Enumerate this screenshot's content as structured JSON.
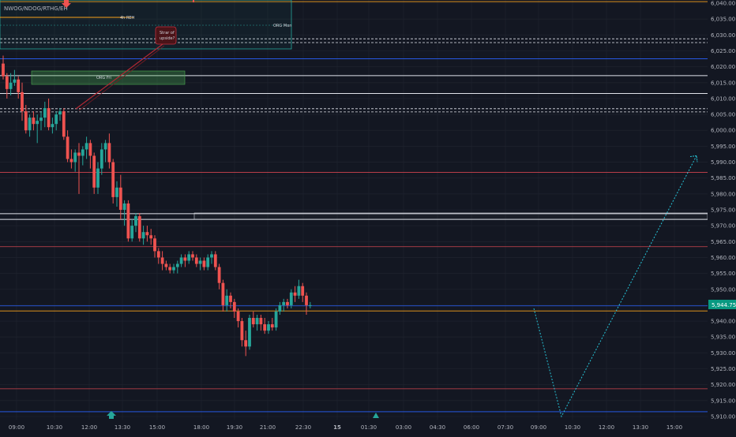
{
  "indicator": {
    "name": "NWOG/NDOG/RTHG/EH"
  },
  "annotations": {
    "reh_label": "4h REH",
    "org_mon_label": "ORG Mon",
    "org_fri_label": "ORG Fri",
    "callout_line1": "Strar of",
    "callout_line2": "upside?"
  },
  "price_badge": "5,944.75",
  "colors": {
    "background": "#131722",
    "bull": "#26a69a",
    "bear": "#ef5350",
    "price_badge": "#089981",
    "orange_line": "#f7a21b",
    "red_line": "#d0454f",
    "blue_line": "#2962ff",
    "teal_path": "#26c6da"
  },
  "chart_data": {
    "type": "candlestick",
    "y_ticks": [
      "6,040.00",
      "6,035.00",
      "6,030.00",
      "6,025.00",
      "6,020.00",
      "6,015.00",
      "6,010.00",
      "6,005.00",
      "6,000.00",
      "5,995.00",
      "5,990.00",
      "5,985.00",
      "5,980.00",
      "5,975.00",
      "5,970.00",
      "5,965.00",
      "5,960.00",
      "5,955.00",
      "5,950.00",
      "5,945.00",
      "5,940.00",
      "5,935.00",
      "5,930.00",
      "5,925.00",
      "5,920.00",
      "5,915.00",
      "5,910.00"
    ],
    "x_ticks": [
      "09:00",
      "10:30",
      "12:00",
      "13:30",
      "15:00",
      "18:00",
      "19:30",
      "21:00",
      "22:30",
      "15",
      "01:30",
      "03:00",
      "04:30",
      "06:00",
      "07:30",
      "09:00",
      "10:30",
      "12:00",
      "13:30",
      "15:00"
    ],
    "ylim": [
      5909,
      6041
    ],
    "current_price": 5944.75,
    "levels": [
      {
        "price": 6040.5,
        "color": "orange"
      },
      {
        "price": 6028.8,
        "color": "white-dashed"
      },
      {
        "price": 6027.6,
        "color": "white-dashed"
      },
      {
        "price": 6022.5,
        "color": "blue"
      },
      {
        "price": 6017.2,
        "color": "white"
      },
      {
        "price": 6011.6,
        "color": "white"
      },
      {
        "price": 6006.8,
        "color": "white-dashed"
      },
      {
        "price": 6005.8,
        "color": "white-dashed"
      },
      {
        "price": 5986.8,
        "color": "red"
      },
      {
        "price": 5973.8,
        "color": "white"
      },
      {
        "price": 5972.0,
        "color": "white"
      },
      {
        "price": 5963.4,
        "color": "red"
      },
      {
        "price": 5944.8,
        "color": "blue"
      },
      {
        "price": 5943.2,
        "color": "orange"
      },
      {
        "price": 5918.7,
        "color": "red"
      },
      {
        "price": 5911.5,
        "color": "blue"
      }
    ],
    "projection": [
      {
        "x": "09:00",
        "price": 5944.0
      },
      {
        "x": "10:30",
        "price": 5910.0
      },
      {
        "x": "15:00",
        "price": 5992.0
      }
    ],
    "candles": [
      [
        6021.0,
        6023.5,
        6016.0,
        6017.0
      ],
      [
        6017.0,
        6018.0,
        6010.0,
        6013.0
      ],
      [
        6013.0,
        6018.0,
        6011.0,
        6015.0
      ],
      [
        6015.0,
        6019.0,
        6014.0,
        6016.0
      ],
      [
        6016.0,
        6017.0,
        6010.0,
        6012.0
      ],
      [
        6012.0,
        6015.0,
        6003.0,
        6006.0
      ],
      [
        6006.0,
        6008.0,
        5999.0,
        6000.0
      ],
      [
        6000.0,
        6005.0,
        5998.0,
        6004.0
      ],
      [
        6004.0,
        6006.0,
        6000.0,
        6002.0
      ],
      [
        6002.0,
        6005.0,
        5996.0,
        6003.0
      ],
      [
        6003.0,
        6006.0,
        6000.0,
        6004.0
      ],
      [
        6004.0,
        6009.0,
        6001.0,
        6007.0
      ],
      [
        6007.0,
        6010.0,
        6000.0,
        6001.0
      ],
      [
        6001.0,
        6004.0,
        5999.0,
        6002.0
      ],
      [
        6002.0,
        6006.0,
        6000.0,
        6005.0
      ],
      [
        6005.0,
        6007.0,
        6003.0,
        6006.0
      ],
      [
        6006.0,
        6007.0,
        5997.0,
        5998.0
      ],
      [
        5998.0,
        6000.0,
        5990.0,
        5991.0
      ],
      [
        5991.0,
        5994.0,
        5988.0,
        5990.0
      ],
      [
        5990.0,
        5994.0,
        5987.0,
        5993.0
      ],
      [
        5993.0,
        5996.0,
        5980.0,
        5992.0
      ],
      [
        5992.0,
        5995.0,
        5989.0,
        5994.0
      ],
      [
        5994.0,
        5998.0,
        5991.0,
        5996.0
      ],
      [
        5996.0,
        5997.0,
        5988.0,
        5992.0
      ],
      [
        5992.0,
        5993.0,
        5980.0,
        5982.0
      ],
      [
        5982.0,
        5990.0,
        5980.0,
        5988.0
      ],
      [
        5988.0,
        5996.0,
        5986.0,
        5994.0
      ],
      [
        5994.0,
        5997.0,
        5990.0,
        5996.0
      ],
      [
        5996.0,
        5999.0,
        5988.0,
        5990.0
      ],
      [
        5990.0,
        5991.0,
        5977.0,
        5979.0
      ],
      [
        5979.0,
        5984.0,
        5976.0,
        5982.0
      ],
      [
        5982.0,
        5986.0,
        5972.0,
        5975.0
      ],
      [
        5975.0,
        5978.0,
        5970.0,
        5977.0
      ],
      [
        5977.0,
        5978.0,
        5965.0,
        5966.0
      ],
      [
        5966.0,
        5972.0,
        5965.0,
        5970.0
      ],
      [
        5970.0,
        5974.0,
        5968.0,
        5973.0
      ],
      [
        5973.0,
        5974.0,
        5965.0,
        5966.0
      ],
      [
        5966.0,
        5970.0,
        5964.0,
        5968.0
      ],
      [
        5968.0,
        5970.0,
        5965.0,
        5967.0
      ],
      [
        5967.0,
        5969.0,
        5964.0,
        5966.0
      ],
      [
        5966.0,
        5967.0,
        5960.0,
        5962.0
      ],
      [
        5962.0,
        5963.0,
        5958.0,
        5960.0
      ],
      [
        5960.0,
        5962.0,
        5956.0,
        5958.0
      ],
      [
        5958.0,
        5959.0,
        5956.0,
        5957.0
      ],
      [
        5957.0,
        5958.0,
        5955.0,
        5956.0
      ],
      [
        5956.0,
        5958.0,
        5955.0,
        5957.0
      ],
      [
        5957.0,
        5959.0,
        5955.0,
        5958.0
      ],
      [
        5958.0,
        5961.0,
        5957.0,
        5960.0
      ],
      [
        5960.0,
        5961.0,
        5957.0,
        5959.0
      ],
      [
        5959.0,
        5962.0,
        5958.0,
        5961.0
      ],
      [
        5961.0,
        5962.0,
        5959.0,
        5960.0
      ],
      [
        5960.0,
        5961.0,
        5957.0,
        5958.0
      ],
      [
        5958.0,
        5960.0,
        5956.0,
        5959.0
      ],
      [
        5959.0,
        5960.0,
        5956.0,
        5957.0
      ],
      [
        5957.0,
        5961.0,
        5956.0,
        5960.0
      ],
      [
        5960.0,
        5962.0,
        5958.0,
        5961.0
      ],
      [
        5961.0,
        5962.0,
        5956.0,
        5957.0
      ],
      [
        5957.0,
        5958.0,
        5950.0,
        5952.0
      ],
      [
        5952.0,
        5953.0,
        5943.0,
        5945.0
      ],
      [
        5945.0,
        5950.0,
        5943.0,
        5948.0
      ],
      [
        5948.0,
        5949.0,
        5944.0,
        5946.0
      ],
      [
        5946.0,
        5947.0,
        5941.0,
        5943.0
      ],
      [
        5943.0,
        5944.0,
        5938.0,
        5940.0
      ],
      [
        5940.0,
        5941.0,
        5932.0,
        5934.0
      ],
      [
        5934.0,
        5937.0,
        5929.0,
        5932.0
      ],
      [
        5932.0,
        5942.0,
        5931.0,
        5941.0
      ],
      [
        5941.0,
        5943.0,
        5938.0,
        5939.0
      ],
      [
        5939.0,
        5942.0,
        5937.0,
        5941.0
      ],
      [
        5941.0,
        5942.0,
        5937.0,
        5939.0
      ],
      [
        5939.0,
        5941.0,
        5936.0,
        5937.0
      ],
      [
        5937.0,
        5940.0,
        5936.0,
        5939.0
      ],
      [
        5939.0,
        5941.0,
        5937.0,
        5938.0
      ],
      [
        5938.0,
        5944.0,
        5937.0,
        5943.0
      ],
      [
        5943.0,
        5946.0,
        5942.0,
        5945.0
      ],
      [
        5945.0,
        5947.0,
        5943.0,
        5946.0
      ],
      [
        5946.0,
        5947.0,
        5944.0,
        5945.0
      ],
      [
        5945.0,
        5950.0,
        5944.0,
        5949.0
      ],
      [
        5949.0,
        5951.0,
        5946.0,
        5948.0
      ],
      [
        5948.0,
        5953.0,
        5947.0,
        5951.0
      ],
      [
        5951.0,
        5952.0,
        5946.0,
        5948.0
      ],
      [
        5948.0,
        5949.0,
        5942.0,
        5945.0
      ],
      [
        5945.0,
        5946.0,
        5944.0,
        5945.0
      ]
    ]
  }
}
